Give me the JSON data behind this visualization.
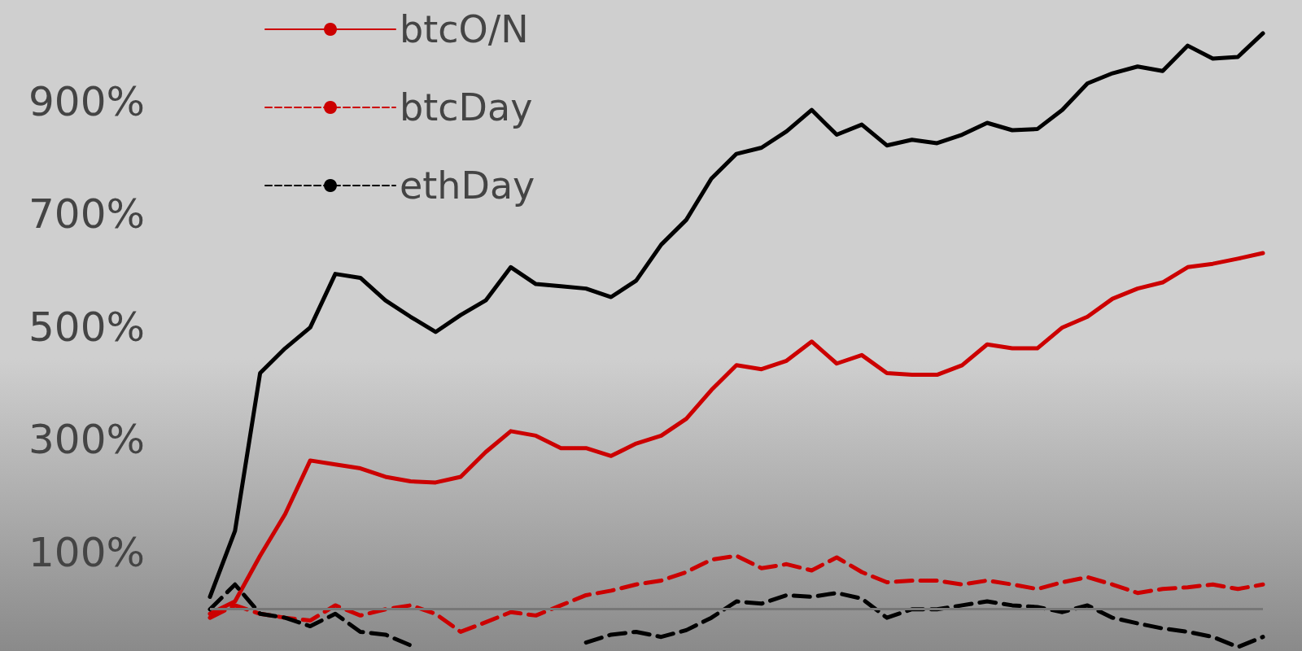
{
  "chart_data": {
    "type": "line",
    "categories": [
      null,
      null,
      null,
      null,
      null,
      null,
      null,
      null,
      null,
      null,
      null,
      null,
      null,
      null,
      null,
      null,
      null,
      null,
      null,
      null,
      null,
      null,
      null,
      null,
      null,
      null,
      null,
      null,
      null,
      null,
      null,
      null,
      null,
      null,
      null,
      null,
      null,
      null,
      null,
      null,
      null,
      null,
      null
    ],
    "series": [
      {
        "color": "#000000",
        "line_style": "solid",
        "values": [
          21,
          138,
          418,
          462,
          499,
          594,
          587,
          547,
          518,
          491,
          521,
          547,
          606,
          576,
          572,
          568,
          553,
          582,
          646,
          690,
          763,
          807,
          818,
          847,
          885,
          841,
          859,
          822,
          832,
          826,
          841,
          862,
          849,
          851,
          885,
          932,
          950,
          962,
          954,
          999,
          976,
          979,
          1021
        ]
      },
      {
        "name": "btcO/N",
        "color": "#cc0000",
        "line_style": "solid",
        "values": [
          -9,
          13,
          94,
          168,
          263,
          256,
          249,
          234,
          226,
          224,
          234,
          278,
          315,
          307,
          285,
          285,
          271,
          293,
          307,
          337,
          388,
          432,
          425,
          440,
          474,
          435,
          450,
          418,
          415,
          415,
          432,
          469,
          462,
          462,
          499,
          518,
          550,
          568,
          579,
          606,
          612,
          621,
          631
        ]
      },
      {
        "name": "btcDay",
        "color": "#cc0000",
        "line_style": "dashed",
        "values": [
          -16,
          6,
          -9,
          -16,
          -21,
          6,
          -12,
          -1,
          6,
          -9,
          -41,
          -24,
          -6,
          -12,
          6,
          24,
          32,
          43,
          50,
          65,
          87,
          94,
          72,
          79,
          68,
          91,
          65,
          47,
          50,
          50,
          43,
          50,
          43,
          35,
          47,
          56,
          43,
          28,
          35,
          38,
          43,
          35,
          43
        ]
      },
      {
        "name": "ethDay",
        "color": "#000000",
        "line_style": "dashed",
        "values": [
          -1,
          43,
          -9,
          -16,
          -31,
          -9,
          -41,
          -46,
          -65,
          null,
          null,
          null,
          null,
          null,
          null,
          -60,
          -46,
          -41,
          -50,
          -38,
          -16,
          13,
          9,
          24,
          21,
          28,
          18,
          -16,
          -1,
          -1,
          6,
          13,
          6,
          3,
          -6,
          6,
          -16,
          -26,
          -35,
          -41,
          -50,
          -68,
          -50
        ]
      }
    ],
    "ylim": [
      -75,
      1080
    ],
    "yticks": [
      {
        "value": 100,
        "label": "100%"
      },
      {
        "value": 300,
        "label": "300%"
      },
      {
        "value": 500,
        "label": "500%"
      },
      {
        "value": 700,
        "label": "700%"
      },
      {
        "value": 900,
        "label": "900%"
      }
    ],
    "ref_lines": [
      {
        "axis": "y",
        "value": 0,
        "color": "#777777"
      }
    ],
    "tick_labels": "y",
    "grid": false,
    "legend": "top left",
    "marker": "none"
  }
}
